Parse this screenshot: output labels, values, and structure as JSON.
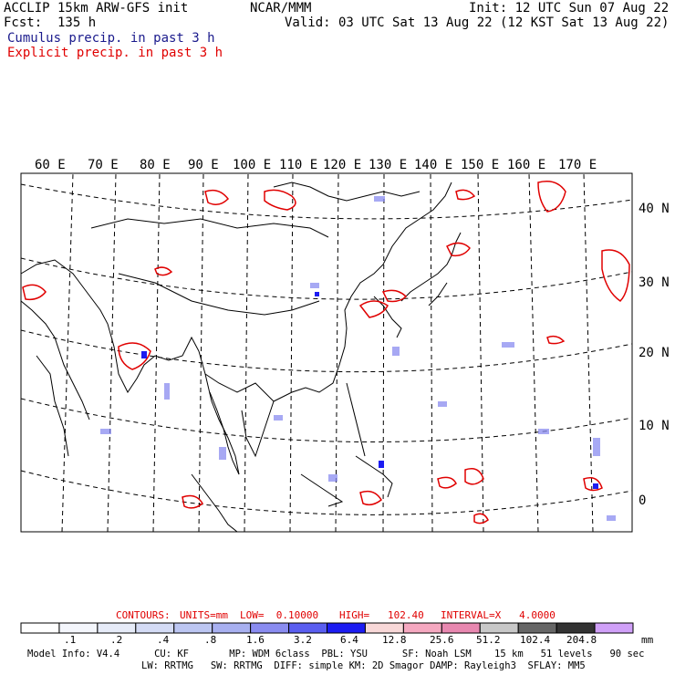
{
  "header": {
    "line1_left": "ACCLIP 15km ARW-GFS init",
    "line1_center": "NCAR/MMM",
    "line1_right": "Init: 12 UTC Sun 07 Aug 22",
    "line2_left": "Fcst:  135 h",
    "line2_right": "Valid: 03 UTC Sat 13 Aug 22 (12 KST Sat 13 Aug 22)",
    "line3": "Cumulus precip. in past 3 h",
    "line4": "Explicit precip. in past 3 h"
  },
  "colors": {
    "cumulus_text": "#1a1a8c",
    "explicit_text": "#e00000",
    "contour_red": "#e00000",
    "coast": "#000000",
    "grid": "#000000"
  },
  "map": {
    "lon_labels": [
      "60 E",
      "70 E",
      "80 E",
      "90 E",
      "100 E",
      "110 E",
      "120 E",
      "130 E",
      "140 E",
      "150 E",
      "160 E",
      "170 E"
    ],
    "lat_labels": [
      "40 N",
      "30 N",
      "20 N",
      "10 N",
      "0"
    ]
  },
  "contours_line": {
    "contours": "CONTOURS:",
    "units": "UNITS=mm",
    "low": "LOW=  0.10000",
    "high": "HIGH=   102.40",
    "interval": "INTERVAL=X   4.0000"
  },
  "colorbar": {
    "colors": [
      "#ffffff",
      "#f4f6fc",
      "#e6ebf8",
      "#d4dbf5",
      "#bcc6f2",
      "#a8b0f0",
      "#8a8cf0",
      "#5a5ef0",
      "#1c1cf2",
      "#f8d8d8",
      "#f5a8c0",
      "#e888b0",
      "#c8c8c8",
      "#666666",
      "#333333",
      "#d0a0f8"
    ],
    "labels": [
      ".1",
      ".2",
      ".4",
      ".8",
      "1.6",
      "3.2",
      "6.4",
      "12.8",
      "25.6",
      "51.2",
      "102.4",
      "204.8"
    ],
    "unit": "mm"
  },
  "footer": {
    "line1": "Model Info: V4.4      CU: KF       MP: WDM 6class  PBL: YSU      SF: Noah LSM    15 km   51 levels   90 sec",
    "line2": "LW: RRTMG   SW: RRTMG  DIFF: simple KM: 2D Smagor DAMP: Rayleigh3  SFLAY: MM5"
  }
}
